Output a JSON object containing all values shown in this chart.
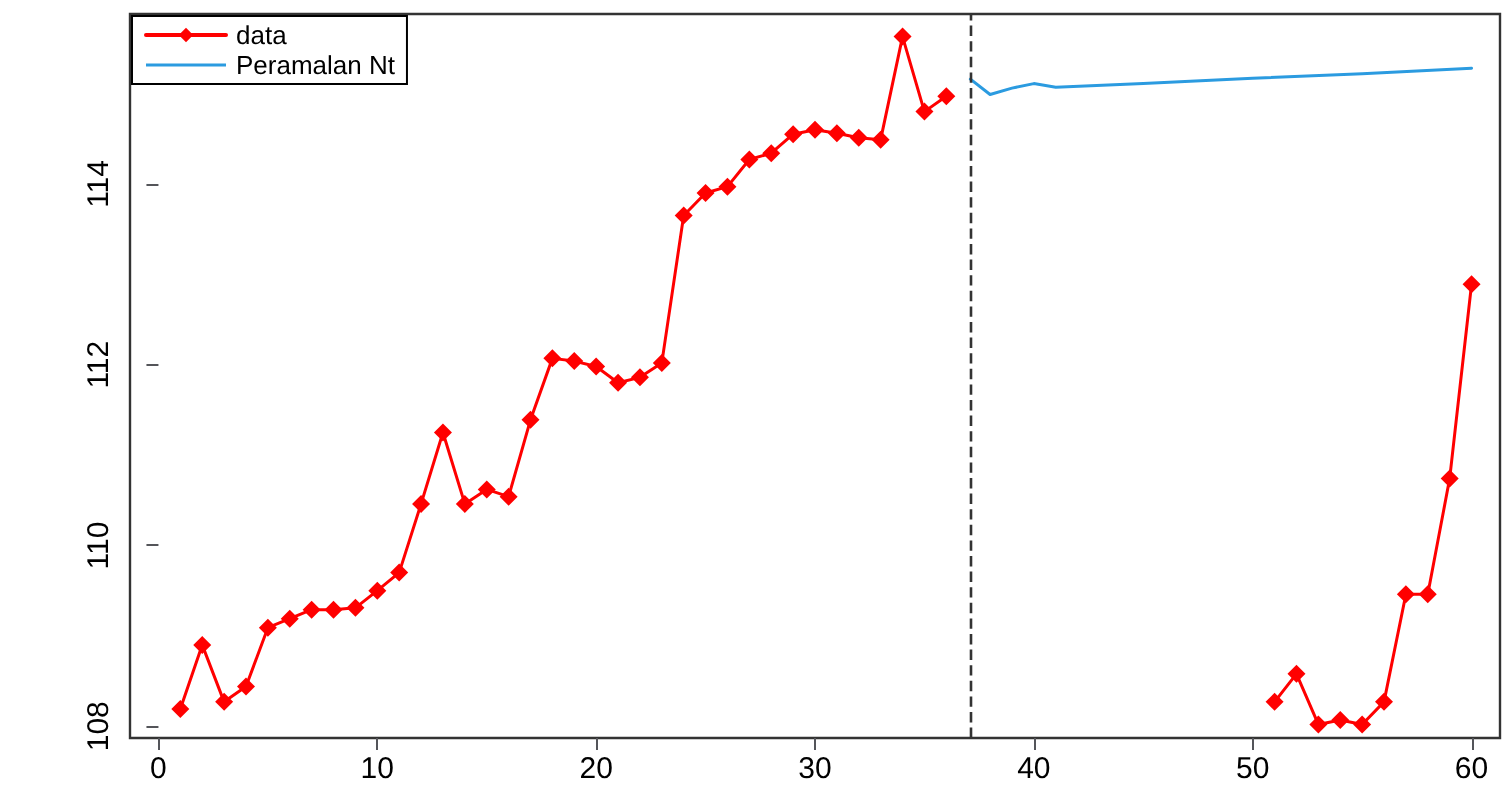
{
  "chart_data": {
    "type": "line",
    "xlim": [
      -1.3,
      61.3
    ],
    "xticks": [
      0,
      10,
      20,
      30,
      40,
      50,
      60
    ],
    "ylim": [
      107.87,
      115.88
    ],
    "yticks": [
      108,
      110,
      112,
      114
    ],
    "grid": false,
    "legend": "top left",
    "marker": "diamond",
    "line_style": "solid",
    "series": [
      {
        "name": "data",
        "color": "#ff0000",
        "x": [
          1,
          2,
          3,
          4,
          5,
          6,
          7,
          8,
          9,
          10,
          11,
          12,
          13,
          14,
          15,
          16,
          17,
          18,
          19,
          20,
          21,
          22,
          23,
          24,
          25,
          26,
          27,
          28,
          29,
          30,
          31,
          32,
          33,
          34,
          35,
          36,
          37,
          38,
          39,
          40,
          41,
          42,
          43,
          44,
          45,
          46,
          47,
          48,
          49,
          50,
          51,
          52,
          53,
          54,
          55,
          56,
          57,
          58,
          59,
          60
        ],
        "values": [
          108.19,
          108.9,
          108.27,
          108.44,
          109.09,
          109.19,
          109.29,
          109.29,
          109.31,
          109.5,
          109.7,
          110.46,
          111.25,
          110.46,
          110.62,
          110.54,
          111.39,
          112.07,
          112.04,
          111.98,
          111.8,
          111.86,
          112.02,
          113.65,
          113.9,
          113.97,
          114.27,
          114.34,
          114.55,
          114.6,
          114.56,
          114.51,
          114.49,
          115.63,
          114.8,
          114.97,
          null,
          null,
          null,
          null,
          null,
          null,
          null,
          null,
          null,
          null,
          null,
          null,
          null,
          null,
          108.27,
          108.58,
          108.02,
          108.07,
          108.02,
          108.27,
          109.46,
          109.46,
          110.74,
          112.89
        ]
      },
      {
        "name": "Peramalan Nt",
        "color": "#2b9be0",
        "marker": "none",
        "x": [
          37.1,
          38,
          39,
          40,
          41,
          45,
          50,
          55,
          60
        ],
        "values": [
          115.16,
          114.99,
          115.06,
          115.11,
          115.07,
          115.11,
          115.17,
          115.22,
          115.28
        ]
      }
    ],
    "ref_lines": [
      {
        "axis": "x",
        "value": 37.1,
        "color": "#333333",
        "line_style": "dashed"
      }
    ]
  }
}
